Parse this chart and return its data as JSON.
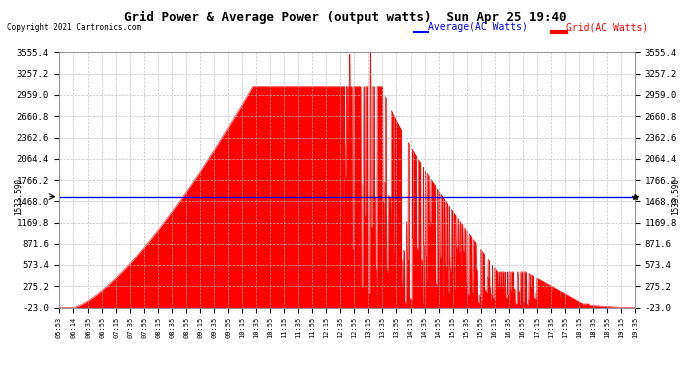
{
  "title": "Grid Power & Average Power (output watts)  Sun Apr 25 19:40",
  "copyright": "Copyright 2021 Cartronics.com",
  "legend_avg": "Average(AC Watts)",
  "legend_grid": "Grid(AC Watts)",
  "avg_value": 1533.59,
  "ymin": -23.0,
  "ymax": 3555.4,
  "yticks": [
    -23.0,
    275.2,
    573.4,
    871.6,
    1169.8,
    1468.0,
    1766.2,
    2064.4,
    2362.6,
    2660.8,
    2959.0,
    3257.2,
    3555.4
  ],
  "ytick_labels": [
    "-23.0",
    "275.2",
    "573.4",
    "871.6",
    "1169.8",
    "1468.0",
    "1766.2",
    "2064.4",
    "2362.6",
    "2660.8",
    "2959.0",
    "3257.2",
    "3555.4"
  ],
  "background_color": "#ffffff",
  "fill_color": "#ff0000",
  "line_color": "#ff0000",
  "avg_line_color": "#0000ff",
  "grid_color": "#aaaaaa",
  "title_color": "#000000",
  "copyright_color": "#000000",
  "left_label": "1533.590",
  "right_label": "1533.590",
  "xtick_labels": [
    "05:53",
    "06:14",
    "06:35",
    "06:55",
    "07:15",
    "07:35",
    "07:55",
    "08:15",
    "08:35",
    "08:55",
    "09:15",
    "09:35",
    "09:55",
    "10:15",
    "10:35",
    "10:55",
    "11:15",
    "11:35",
    "11:55",
    "12:15",
    "12:35",
    "12:55",
    "13:15",
    "13:35",
    "13:55",
    "14:15",
    "14:35",
    "14:55",
    "15:15",
    "15:35",
    "15:55",
    "16:15",
    "16:35",
    "16:55",
    "17:15",
    "17:35",
    "17:55",
    "18:15",
    "18:35",
    "18:55",
    "19:15",
    "19:35"
  ]
}
